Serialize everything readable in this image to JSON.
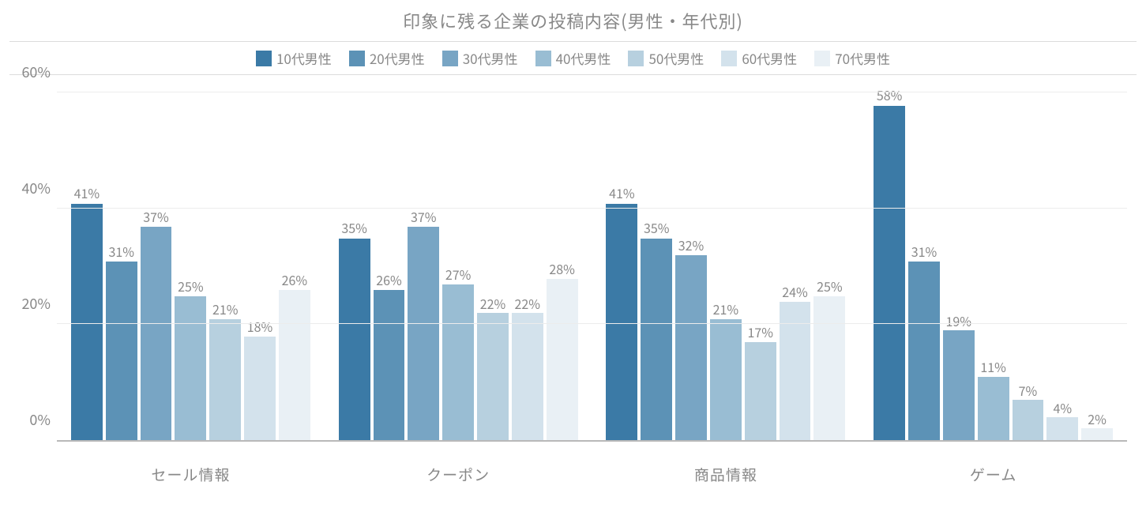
{
  "chart": {
    "type": "bar-grouped",
    "title": "印象に残る企業の投稿内容(男性・年代別)",
    "title_color": "#888888",
    "title_fontsize": 22,
    "background_color": "#ffffff",
    "grid_color": "#ececec",
    "axis_color": "#b9b9b9",
    "text_color": "#888888",
    "label_fontsize": 16,
    "axis_fontsize": 18,
    "legend_fontsize": 17,
    "y": {
      "min": 0,
      "max": 60,
      "tick_step": 20,
      "suffix": "%"
    },
    "yticks": [
      {
        "value": 0,
        "label": "0%"
      },
      {
        "value": 20,
        "label": "20%"
      },
      {
        "value": 40,
        "label": "40%"
      },
      {
        "value": 60,
        "label": "60%"
      }
    ],
    "series": [
      {
        "name": "10代男性",
        "color": "#3b7aa6"
      },
      {
        "name": "20代男性",
        "color": "#5c92b6"
      },
      {
        "name": "30代男性",
        "color": "#78a5c4"
      },
      {
        "name": "40代男性",
        "color": "#99bdd3"
      },
      {
        "name": "50代男性",
        "color": "#b7d0df"
      },
      {
        "name": "60代男性",
        "color": "#d3e2ec"
      },
      {
        "name": "70代男性",
        "color": "#e9f0f5"
      }
    ],
    "categories": [
      {
        "label": "セール情報",
        "values": [
          41,
          31,
          37,
          25,
          21,
          18,
          26
        ]
      },
      {
        "label": "クーポン",
        "values": [
          35,
          26,
          37,
          27,
          22,
          22,
          28
        ]
      },
      {
        "label": "商品情報",
        "values": [
          41,
          35,
          32,
          21,
          17,
          24,
          25
        ]
      },
      {
        "label": "ゲーム",
        "values": [
          58,
          31,
          19,
          11,
          7,
          4,
          2
        ]
      }
    ]
  }
}
